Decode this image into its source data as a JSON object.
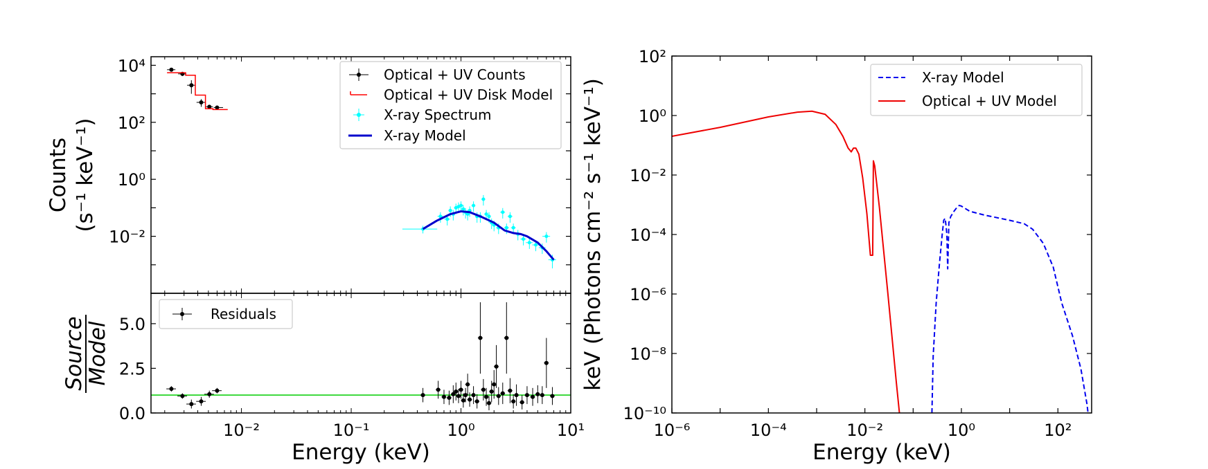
{
  "chart_data": [
    {
      "type": "scatter",
      "panel": "top-left",
      "xscale": "log",
      "yscale": "log",
      "xlim": [
        0.0015,
        10
      ],
      "ylim": [
        0.0001,
        20000
      ],
      "ylabel_line1": "Counts",
      "ylabel_line2": "(s⁻¹ keV⁻¹)",
      "legend_position": "top-right",
      "yticks": [
        {
          "value": 10000,
          "label": "10⁴"
        },
        {
          "value": 100,
          "label": "10²"
        },
        {
          "value": 1,
          "label": "10⁰"
        },
        {
          "value": 0.01,
          "label": "10⁻²"
        }
      ],
      "series": [
        {
          "name": "Optical + UV Counts",
          "kind": "errorbar",
          "color": "#000000",
          "x": [
            0.0023,
            0.0029,
            0.0035,
            0.0043,
            0.0051,
            0.006
          ],
          "xerr_lo": [
            0.0002,
            0.00025,
            0.0003,
            0.0004,
            0.0004,
            0.0004
          ],
          "xerr_hi": [
            0.0002,
            0.00025,
            0.0003,
            0.0004,
            0.0004,
            0.0008
          ],
          "y": [
            7000,
            5000,
            2000,
            500,
            350,
            330
          ],
          "yerr_lo": [
            1000,
            800,
            1000,
            150,
            60,
            40
          ],
          "yerr_hi": [
            1000,
            800,
            1000,
            150,
            60,
            40
          ]
        },
        {
          "name": "Optical + UV Disk Model",
          "kind": "step",
          "color": "#ff0000",
          "x_edges": [
            0.0021,
            0.0027,
            0.0031,
            0.0038,
            0.0047,
            0.0055,
            0.0068,
            0.0075
          ],
          "y_steps": [
            5500,
            5500,
            4500,
            900,
            300,
            280,
            280
          ]
        },
        {
          "name": "X-ray Spectrum",
          "kind": "errorbar",
          "color": "#00ffff",
          "x": [
            0.45,
            0.65,
            0.75,
            0.8,
            0.85,
            0.9,
            0.95,
            1.0,
            1.05,
            1.1,
            1.15,
            1.2,
            1.3,
            1.4,
            1.5,
            1.6,
            1.7,
            1.8,
            1.9,
            2.0,
            2.2,
            2.4,
            2.6,
            2.8,
            3.0,
            3.3,
            3.7,
            4.2,
            4.8,
            5.5,
            6.0,
            6.8
          ],
          "y": [
            0.018,
            0.05,
            0.04,
            0.08,
            0.06,
            0.1,
            0.11,
            0.12,
            0.09,
            0.07,
            0.06,
            0.08,
            0.12,
            0.05,
            0.05,
            0.2,
            0.06,
            0.05,
            0.03,
            0.025,
            0.02,
            0.07,
            0.02,
            0.05,
            0.02,
            0.012,
            0.008,
            0.006,
            0.005,
            0.004,
            0.01,
            0.0015
          ],
          "xerr_rel": [
            0.35,
            0.06,
            0.06,
            0.04,
            0.04,
            0.04,
            0.04,
            0.04,
            0.04,
            0.04,
            0.04,
            0.04,
            0.04,
            0.04,
            0.04,
            0.04,
            0.04,
            0.04,
            0.04,
            0.04,
            0.05,
            0.05,
            0.05,
            0.05,
            0.05,
            0.06,
            0.06,
            0.07,
            0.07,
            0.07,
            0.08,
            0.08
          ],
          "yerr_rel": [
            0.3,
            0.4,
            0.4,
            0.4,
            0.4,
            0.4,
            0.4,
            0.4,
            0.4,
            0.4,
            0.4,
            0.4,
            0.4,
            0.4,
            0.4,
            0.4,
            0.4,
            0.4,
            0.4,
            0.4,
            0.4,
            0.4,
            0.4,
            0.4,
            0.4,
            0.4,
            0.4,
            0.4,
            0.4,
            0.4,
            0.4,
            0.5
          ]
        },
        {
          "name": "X-ray Model",
          "kind": "line",
          "color": "#0000cc",
          "x": [
            0.45,
            0.6,
            0.8,
            1.0,
            1.2,
            1.5,
            2.0,
            2.5,
            3.0,
            3.5,
            4.0,
            5.0,
            6.0,
            7.0
          ],
          "y": [
            0.018,
            0.035,
            0.06,
            0.075,
            0.07,
            0.05,
            0.03,
            0.016,
            0.013,
            0.012,
            0.01,
            0.006,
            0.003,
            0.0015
          ]
        }
      ]
    },
    {
      "type": "scatter",
      "panel": "bottom-left",
      "xscale": "log",
      "yscale": "linear",
      "xlim": [
        0.0015,
        10
      ],
      "ylim": [
        0,
        6.7
      ],
      "xlabel": "Energy (keV)",
      "ylabel_numerator": "Source",
      "ylabel_denominator": "Model",
      "legend_position": "top-left",
      "reference_line": {
        "y": 1.0,
        "color": "#00cc00"
      },
      "xticks": [
        {
          "value": 0.01,
          "label": "10⁻²"
        },
        {
          "value": 0.1,
          "label": "10⁻¹"
        },
        {
          "value": 1,
          "label": "10⁰"
        },
        {
          "value": 10,
          "label": "10¹"
        }
      ],
      "yticks": [
        {
          "value": 0,
          "label": "0.0"
        },
        {
          "value": 2.5,
          "label": "2.5"
        },
        {
          "value": 5,
          "label": "5.0"
        }
      ],
      "series": [
        {
          "name": "Residuals",
          "kind": "errorbar",
          "color": "#000000",
          "x": [
            0.0023,
            0.0029,
            0.0035,
            0.0043,
            0.0051,
            0.006,
            0.45,
            0.62,
            0.7,
            0.78,
            0.85,
            0.9,
            0.95,
            1.0,
            1.05,
            1.1,
            1.15,
            1.2,
            1.3,
            1.4,
            1.5,
            1.6,
            1.7,
            1.8,
            1.9,
            2.0,
            2.1,
            2.2,
            2.4,
            2.6,
            2.8,
            3.0,
            3.2,
            3.6,
            4.0,
            4.5,
            5.0,
            5.5,
            6.0,
            6.8
          ],
          "y": [
            1.35,
            0.95,
            0.5,
            0.65,
            1.05,
            1.25,
            1.0,
            1.3,
            0.9,
            0.85,
            1.05,
            1.2,
            0.95,
            1.3,
            0.7,
            1.0,
            1.6,
            0.75,
            1.0,
            0.65,
            4.2,
            1.3,
            0.9,
            0.55,
            1.2,
            1.6,
            2.6,
            0.95,
            1.1,
            4.2,
            1.25,
            0.65,
            1.0,
            0.6,
            1.0,
            0.9,
            1.05,
            1.0,
            2.8,
            0.95
          ],
          "yerr": [
            0.15,
            0.15,
            0.25,
            0.25,
            0.2,
            0.15,
            0.4,
            0.5,
            0.4,
            0.4,
            0.5,
            0.5,
            0.4,
            0.5,
            0.4,
            0.4,
            0.6,
            0.4,
            0.5,
            0.4,
            2.0,
            0.6,
            0.5,
            0.4,
            0.6,
            0.8,
            1.2,
            0.5,
            0.6,
            2.0,
            0.7,
            0.4,
            0.6,
            0.4,
            0.5,
            0.5,
            0.5,
            0.5,
            1.4,
            0.5
          ]
        }
      ]
    },
    {
      "type": "line",
      "panel": "right",
      "xscale": "log",
      "yscale": "log",
      "xlim": [
        1e-06,
        500
      ],
      "ylim": [
        1e-10,
        100
      ],
      "xlabel": "Energy (keV)",
      "ylabel": "keV (Photons cm⁻² s⁻¹ keV⁻¹)",
      "legend_position": "top-right",
      "xticks": [
        {
          "value": 1e-06,
          "label": "10⁻⁶"
        },
        {
          "value": 0.0001,
          "label": "10⁻⁴"
        },
        {
          "value": 0.01,
          "label": "10⁻²"
        },
        {
          "value": 1,
          "label": "10⁰"
        },
        {
          "value": 100,
          "label": "10²"
        }
      ],
      "yticks": [
        {
          "value": 100,
          "label": "10²"
        },
        {
          "value": 1,
          "label": "10⁰"
        },
        {
          "value": 0.01,
          "label": "10⁻²"
        },
        {
          "value": 0.0001,
          "label": "10⁻⁴"
        },
        {
          "value": 1e-06,
          "label": "10⁻⁶"
        },
        {
          "value": 1e-08,
          "label": "10⁻⁸"
        },
        {
          "value": 1e-10,
          "label": "10⁻¹⁰"
        }
      ],
      "series": [
        {
          "name": "X-ray Model",
          "style": "dashed",
          "color": "#0000ee",
          "x": [
            0.245,
            0.26,
            0.3,
            0.35,
            0.4,
            0.43,
            0.46,
            0.48,
            0.5,
            0.52,
            0.55,
            0.6,
            0.7,
            0.8,
            0.9,
            1.0,
            1.5,
            3,
            10,
            20,
            30,
            50,
            80,
            120,
            200,
            300,
            400,
            500
          ],
          "y": [
            1e-10,
            8e-09,
            5e-07,
            1e-05,
            0.0001,
            0.0003,
            0.00035,
            0.0002,
            0.0001,
            7e-06,
            0.00025,
            0.0004,
            0.0006,
            0.0008,
            0.00095,
            0.0009,
            0.0006,
            0.00045,
            0.0003,
            0.00023,
            0.00015,
            5e-05,
            8e-06,
            5e-07,
            4e-08,
            3e-09,
            2e-10,
            1e-11
          ]
        },
        {
          "name": "Optical + UV Model",
          "style": "solid",
          "color": "#ee0000",
          "x": [
            1e-06,
            1e-05,
            0.0001,
            0.0004,
            0.0008,
            0.0015,
            0.0025,
            0.0035,
            0.0045,
            0.0052,
            0.0058,
            0.0065,
            0.0075,
            0.009,
            0.011,
            0.013,
            0.0145,
            0.015,
            0.016,
            0.02,
            0.03,
            0.045,
            0.06
          ],
          "y": [
            0.2,
            0.4,
            0.9,
            1.3,
            1.4,
            1.1,
            0.5,
            0.2,
            0.08,
            0.06,
            0.08,
            0.08,
            0.05,
            0.008,
            0.0005,
            2e-05,
            2e-05,
            0.03,
            0.02,
            0.0008,
            1e-06,
            1e-09,
            1e-11
          ]
        }
      ]
    }
  ]
}
